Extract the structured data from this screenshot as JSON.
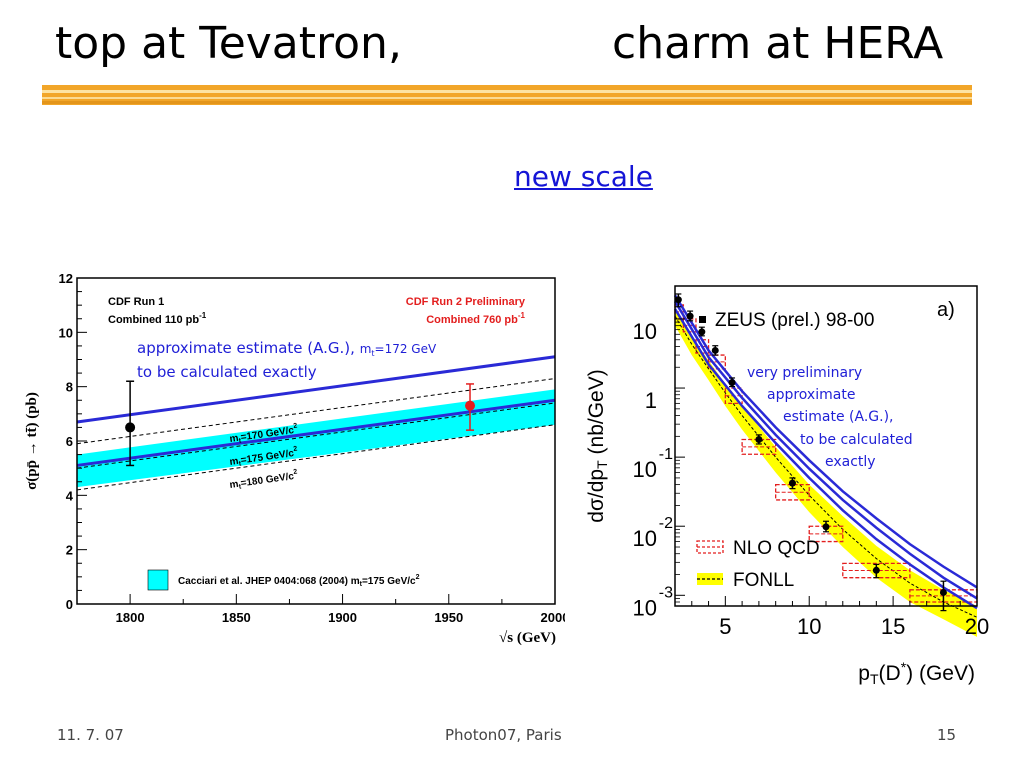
{
  "slide": {
    "title_left": "top at Tevatron,",
    "title_right": "charm at HERA",
    "link_text": "new  scale",
    "accent_colors": {
      "rule": "#f2a629",
      "link": "#1515d6",
      "annotation": "#1f1fd6",
      "band": "#00ffff",
      "red": "#e31e1e"
    }
  },
  "footer": {
    "date": "11. 7. 07",
    "event": "Photon07, Paris",
    "page": "15"
  },
  "chart_data": [
    {
      "type": "scatter",
      "ylabel": "σ(pp̄ → tt̄) (pb)",
      "xlabel": "√s (GeV)",
      "xlim": [
        1775,
        2000
      ],
      "ylim": [
        0,
        12
      ],
      "x_ticks": [
        "1800",
        "1850",
        "1900",
        "1950",
        "2000"
      ],
      "y_ticks": [
        "0",
        "2",
        "4",
        "6",
        "8",
        "10",
        "12"
      ],
      "legend_left": {
        "line1": "CDF Run 1",
        "line2": "Combined 110 pb",
        "sup": "-1"
      },
      "legend_right": {
        "line1": "CDF Run 2 Preliminary",
        "line2": "Combined 760 pb",
        "sup": "-1"
      },
      "points": [
        {
          "name": "CDF Run 1",
          "x": 1800,
          "y": 6.5,
          "err_low": 5.1,
          "err_high": 8.2,
          "color": "#000000"
        },
        {
          "name": "CDF Run 2",
          "x": 1960,
          "y": 7.3,
          "err_low": 6.4,
          "err_high": 8.1,
          "color": "#e31e1e"
        }
      ],
      "band": {
        "x": [
          1775,
          2000
        ],
        "low": [
          4.3,
          6.6
        ],
        "high": [
          5.5,
          7.9
        ],
        "color": "#00ffff"
      },
      "dashed_lines": [
        {
          "x": [
            1775,
            2000
          ],
          "y": [
            4.2,
            6.6
          ]
        },
        {
          "x": [
            1775,
            2000
          ],
          "y": [
            5.9,
            8.3
          ]
        },
        {
          "x": [
            1775,
            2000
          ],
          "y": [
            5.0,
            7.4
          ]
        }
      ],
      "blue_lines": [
        {
          "x": [
            1775,
            2000
          ],
          "y": [
            6.7,
            9.1
          ]
        },
        {
          "x": [
            1775,
            2000
          ],
          "y": [
            5.1,
            7.5
          ]
        }
      ],
      "mass_labels": [
        {
          "text": "m",
          "sub": "t",
          "rest": "=170 GeV/c",
          "sup": "2"
        },
        {
          "text": "m",
          "sub": "t",
          "rest": "=175 GeV/c",
          "sup": "2"
        },
        {
          "text": "m",
          "sub": "t",
          "rest": "=180 GeV/c",
          "sup": "2"
        }
      ],
      "annotation": {
        "line1": "approximate estimate (A.G.), ",
        "mass": "m",
        "mass_sub": "t",
        "mass_rest": "=172 GeV",
        "line2": "to be calculated exactly"
      },
      "band_legend": {
        "text": "Cacciari et al. JHEP 0404:068 (2004) m",
        "sub": "t",
        "rest": "=175 GeV/c",
        "sup": "2"
      }
    },
    {
      "type": "scatter",
      "ylabel": "dσ/dp",
      "ylabel_sub": "T",
      "ylabel_rest": " (nb/GeV)",
      "xlabel": "p",
      "xlabel_sub": "T",
      "xlabel_rest": "(D",
      "xlabel_sup": "*",
      "xlabel_tail": ") (GeV)",
      "log_scale_y": true,
      "xlim": [
        2,
        20
      ],
      "ylim": [
        0.0007,
        30
      ],
      "x_ticks": [
        "5",
        "10",
        "15",
        "20"
      ],
      "y_ticks": [
        {
          "base": "10",
          "exp": ""
        },
        {
          "base": "1",
          "exp": ""
        },
        {
          "base": "10",
          "exp": "-1"
        },
        {
          "base": "10",
          "exp": "-2"
        },
        {
          "base": "10",
          "exp": "-3"
        }
      ],
      "panel_label": "a)",
      "series": [
        {
          "name": "ZEUS (prel.) 98-00",
          "x": [
            2.2,
            2.9,
            3.6,
            4.4,
            5.4,
            7.0,
            9.0,
            11.0,
            14.0,
            18.0
          ],
          "y": [
            19,
            11,
            6.5,
            3.5,
            1.2,
            0.18,
            0.042,
            0.0098,
            0.0023,
            0.0011
          ],
          "err_low": [
            15,
            9.4,
            5.7,
            3.0,
            1.05,
            0.155,
            0.035,
            0.0083,
            0.0018,
            0.0006
          ],
          "err_high": [
            23,
            13,
            7.6,
            4.1,
            1.4,
            0.21,
            0.05,
            0.0118,
            0.0028,
            0.0016
          ]
        }
      ],
      "nlo_qcd": {
        "name": "NLO QCD",
        "bins": [
          [
            2,
            2.5
          ],
          [
            2.5,
            3.25
          ],
          [
            3.25,
            4
          ],
          [
            4,
            5
          ],
          [
            5,
            6
          ],
          [
            6,
            8
          ],
          [
            8,
            10
          ],
          [
            10,
            12
          ],
          [
            12,
            16
          ],
          [
            16,
            20
          ]
        ],
        "low": [
          10,
          6.5,
          3.2,
          1.9,
          0.6,
          0.11,
          0.024,
          0.006,
          0.0018,
          0.0008
        ],
        "high": [
          16,
          10,
          5,
          3.0,
          1.0,
          0.18,
          0.04,
          0.01,
          0.0029,
          0.0012
        ]
      },
      "fonll": {
        "name": "FONLL",
        "x": [
          2,
          3,
          4,
          5,
          6,
          8,
          10,
          12,
          14,
          16,
          18,
          20
        ],
        "low": [
          8,
          3.0,
          1.3,
          0.55,
          0.25,
          0.06,
          0.016,
          0.005,
          0.0018,
          0.0008,
          0.00045,
          0.00025
        ],
        "mid": [
          11,
          4.3,
          1.9,
          0.85,
          0.4,
          0.1,
          0.028,
          0.009,
          0.0034,
          0.0015,
          0.0008,
          0.00048
        ],
        "high": [
          14,
          5.5,
          2.5,
          1.15,
          0.55,
          0.14,
          0.04,
          0.014,
          0.0052,
          0.0023,
          0.0012,
          0.0007
        ]
      },
      "blue_curves": [
        {
          "x": [
            2,
            4,
            6,
            8,
            10,
            12,
            14,
            16,
            18,
            20
          ],
          "y": [
            14,
            2.2,
            0.55,
            0.16,
            0.05,
            0.017,
            0.0065,
            0.0028,
            0.0013,
            0.00065
          ]
        },
        {
          "x": [
            2,
            4,
            6,
            8,
            10,
            12,
            14,
            16,
            18,
            20
          ],
          "y": [
            22,
            3.5,
            0.9,
            0.27,
            0.09,
            0.032,
            0.013,
            0.0055,
            0.0026,
            0.0013
          ]
        },
        {
          "x": [
            2,
            4,
            6,
            8,
            10,
            12,
            14,
            16,
            18,
            20
          ],
          "y": [
            18,
            2.8,
            0.72,
            0.21,
            0.068,
            0.024,
            0.0095,
            0.004,
            0.0018,
            0.0009
          ]
        }
      ],
      "annotation": [
        "very preliminary",
        "approximate",
        "estimate (A.G.),",
        "to be calculated",
        "exactly"
      ]
    }
  ]
}
